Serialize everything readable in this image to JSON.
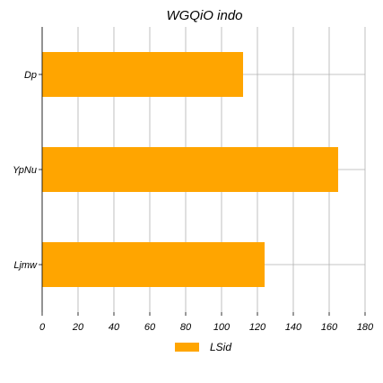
{
  "chart_data": {
    "type": "bar",
    "orientation": "horizontal",
    "title": "WGQiO indo",
    "xlabel": "",
    "ylabel": "",
    "categories": [
      "Dp",
      "YpNu",
      "Ljmw"
    ],
    "series": [
      {
        "name": "LSid",
        "values": [
          112,
          165,
          124
        ],
        "color": "#FFA500"
      }
    ],
    "xlim": [
      0,
      180
    ],
    "xticks": [
      0,
      20,
      40,
      60,
      80,
      100,
      120,
      140,
      160,
      180
    ],
    "grid": true,
    "legend_position": "bottom"
  }
}
